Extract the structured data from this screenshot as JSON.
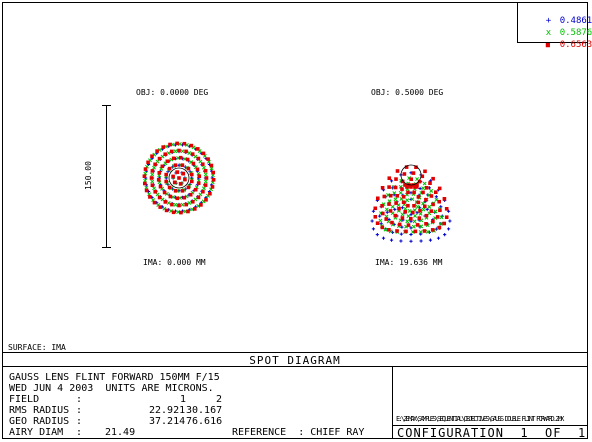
{
  "legend": [
    {
      "label": "0.4861",
      "color": "#0000cc",
      "symbol": "+"
    },
    {
      "label": "0.5876",
      "color": "#00c000",
      "symbol": "x"
    },
    {
      "label": "0.6563",
      "color": "#e00000",
      "symbol": "■"
    }
  ],
  "fields": [
    {
      "obj_label": "OBJ: 0.0000 DEG",
      "ima_label": "IMA: 0.000 MM"
    },
    {
      "obj_label": "OBJ: 0.5000 DEG",
      "ima_label": "IMA: 19.636 MM"
    }
  ],
  "scale_bar_label": "150.00",
  "surface_label": "SURFACE: IMA",
  "title": "SPOT DIAGRAM",
  "info": {
    "line1": "GAUSS LENS FLINT FORWARD 150MM F/15",
    "line2": "WED JUN 4 2003  UNITS ARE MICRONS.",
    "field_label": "FIELD",
    "field_values": [
      "1",
      "2"
    ],
    "rms_label": "RMS RADIUS",
    "rms_values": [
      "22.921",
      "30.167"
    ],
    "geo_label": "GEO RADIUS",
    "geo_values": [
      "37.214",
      "76.616"
    ],
    "airy_label": "AIRY DIAM",
    "airy_value": "21.49",
    "reference": "REFERENCE  : CHIEF RAY",
    "colon": ":"
  },
  "configuration": "CONFIGURATION  1  OF  1",
  "logo_text": "E:\\ZEMAX\\SAMPLES\\SEQUENTIAL\\OBJECTIVES\\GAUSS DOUBLE FLINT FORWARD.ZMX"
}
